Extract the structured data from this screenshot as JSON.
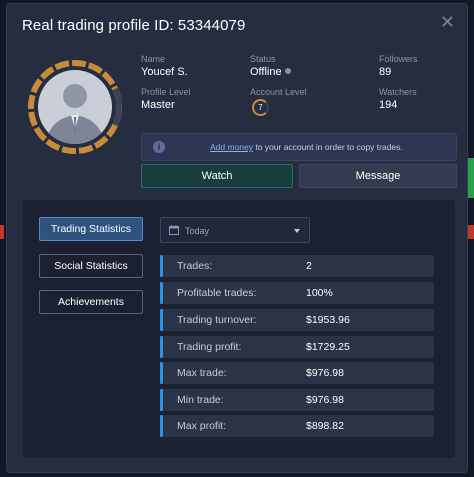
{
  "dialog": {
    "title": "Real trading profile ID: 53344079",
    "close_glyph": "✕"
  },
  "profile": {
    "name_label": "Name",
    "name": "Youcef S.",
    "status_label": "Status",
    "status": "Offline",
    "followers_label": "Followers",
    "followers": "89",
    "profile_level_label": "Profile Level",
    "profile_level": "Master",
    "account_level_label": "Account Level",
    "account_level": "7",
    "watchers_label": "Watchers",
    "watchers": "194"
  },
  "banner": {
    "link": "Add money",
    "text": " to your account in order to copy trades."
  },
  "actions": {
    "watch": "Watch",
    "message": "Message"
  },
  "sidebar": {
    "items": [
      {
        "label": "Trading Statistics",
        "active": true
      },
      {
        "label": "Social Statistics",
        "active": false
      },
      {
        "label": "Achievements",
        "active": false
      }
    ]
  },
  "period": {
    "selected": "Today"
  },
  "stats": [
    {
      "label": "Trades:",
      "value": "2"
    },
    {
      "label": "Profitable trades:",
      "value": "100%"
    },
    {
      "label": "Trading turnover:",
      "value": "$1953.96"
    },
    {
      "label": "Trading profit:",
      "value": "$1729.25"
    },
    {
      "label": "Max trade:",
      "value": "$976.98"
    },
    {
      "label": "Min trade:",
      "value": "$976.98"
    },
    {
      "label": "Max profit:",
      "value": "$898.82"
    }
  ],
  "colors": {
    "accent_blue": "#2f8fe3",
    "level_ring": "#c98b3a",
    "watch_bg": "#173d3d"
  }
}
